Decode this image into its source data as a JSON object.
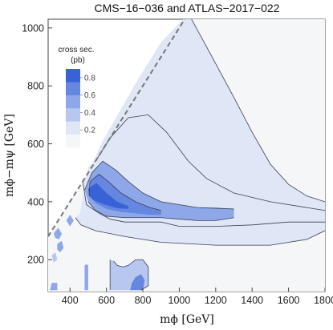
{
  "chart_data": {
    "type": "heatmap",
    "title": "CMS−16−036 and ATLAS−2017−022",
    "xlabel": "mϕ [GeV]",
    "ylabel": "mϕ−mψ [GeV]",
    "xlim": [
      280,
      1800
    ],
    "ylim": [
      90,
      1030
    ],
    "xticks": [
      "400",
      "600",
      "800",
      "1000",
      "1200",
      "1400",
      "1600",
      "1800"
    ],
    "xtick_values": [
      400,
      600,
      800,
      1000,
      1200,
      1400,
      1600,
      1800
    ],
    "yticks": [
      "200",
      "400",
      "600",
      "800",
      "1000"
    ],
    "ytick_values": [
      200,
      400,
      600,
      800,
      1000
    ],
    "boundary_line": {
      "style": "dashed",
      "from": [
        280,
        280
      ],
      "to": [
        1050,
        1050
      ]
    },
    "colorbar": {
      "title_line1": "cross sec.",
      "title_line2": "(pb)",
      "ticks": [
        "0.2",
        "0.4",
        "0.6",
        "0.8"
      ],
      "tick_values": [
        0.2,
        0.4,
        0.6,
        0.8
      ],
      "range": [
        0,
        0.9
      ],
      "colors": [
        "#f4f6f8",
        "#dfe6f6",
        "#b7c7f0",
        "#8ea7e9",
        "#6587e0",
        "#3a62d7"
      ]
    },
    "background_color": "#f4f6f8",
    "regions": [
      {
        "level": 0.1,
        "polygon": [
          [
            1050,
            1050
          ],
          [
            1180,
            900
          ],
          [
            1300,
            760
          ],
          [
            1400,
            640
          ],
          [
            1500,
            530
          ],
          [
            1600,
            460
          ],
          [
            1700,
            420
          ],
          [
            1800,
            400
          ],
          [
            1800,
            300
          ],
          [
            1700,
            270
          ],
          [
            1500,
            250
          ],
          [
            1200,
            250
          ],
          [
            900,
            260
          ],
          [
            700,
            280
          ],
          [
            540,
            300
          ],
          [
            460,
            320
          ],
          [
            430,
            345
          ],
          [
            455,
            360
          ],
          [
            500,
            520
          ],
          [
            520,
            530
          ],
          [
            580,
            610
          ],
          [
            680,
            720
          ],
          [
            780,
            830
          ],
          [
            900,
            950
          ]
        ]
      },
      {
        "level": 0.25,
        "polygon": [
          [
            540,
            540
          ],
          [
            620,
            620
          ],
          [
            720,
            690
          ],
          [
            830,
            700
          ],
          [
            930,
            640
          ],
          [
            1050,
            540
          ],
          [
            1150,
            480
          ],
          [
            1300,
            430
          ],
          [
            1500,
            400
          ],
          [
            1700,
            380
          ],
          [
            1800,
            370
          ],
          [
            1800,
            330
          ],
          [
            1600,
            330
          ],
          [
            1400,
            320
          ],
          [
            1200,
            315
          ],
          [
            1000,
            315
          ],
          [
            900,
            330
          ],
          [
            800,
            330
          ],
          [
            700,
            330
          ],
          [
            620,
            340
          ],
          [
            560,
            360
          ],
          [
            490,
            390
          ],
          [
            470,
            470
          ]
        ]
      },
      {
        "level": 0.45,
        "polygon": [
          [
            520,
            500
          ],
          [
            580,
            540
          ],
          [
            650,
            510
          ],
          [
            720,
            470
          ],
          [
            800,
            430
          ],
          [
            900,
            400
          ],
          [
            1000,
            390
          ],
          [
            1100,
            380
          ],
          [
            1200,
            380
          ],
          [
            1300,
            375
          ],
          [
            1300,
            345
          ],
          [
            1200,
            335
          ],
          [
            1100,
            335
          ],
          [
            1000,
            340
          ],
          [
            900,
            345
          ],
          [
            800,
            345
          ],
          [
            700,
            345
          ],
          [
            600,
            350
          ],
          [
            540,
            370
          ],
          [
            500,
            400
          ],
          [
            480,
            440
          ]
        ]
      },
      {
        "level": 0.65,
        "polygon": [
          [
            510,
            470
          ],
          [
            560,
            495
          ],
          [
            610,
            470
          ],
          [
            680,
            430
          ],
          [
            760,
            400
          ],
          [
            840,
            380
          ],
          [
            900,
            370
          ],
          [
            900,
            355
          ],
          [
            840,
            355
          ],
          [
            760,
            360
          ],
          [
            680,
            365
          ],
          [
            600,
            375
          ],
          [
            540,
            395
          ],
          [
            505,
            420
          ]
        ]
      },
      {
        "level": 0.85,
        "polygon": [
          [
            500,
            445
          ],
          [
            545,
            465
          ],
          [
            600,
            430
          ],
          [
            660,
            400
          ],
          [
            720,
            385
          ],
          [
            720,
            375
          ],
          [
            660,
            378
          ],
          [
            590,
            390
          ],
          [
            530,
            405
          ],
          [
            505,
            420
          ]
        ]
      },
      {
        "level": 0.35,
        "polygon": [
          [
            620,
            95
          ],
          [
            700,
            95
          ],
          [
            790,
            95
          ],
          [
            830,
            110
          ],
          [
            830,
            175
          ],
          [
            800,
            200
          ],
          [
            760,
            200
          ],
          [
            720,
            180
          ],
          [
            690,
            175
          ],
          [
            660,
            180
          ],
          [
            640,
            195
          ],
          [
            620,
            200
          ]
        ]
      },
      {
        "level": 0.7,
        "polygon": [
          [
            730,
            95
          ],
          [
            800,
            95
          ],
          [
            810,
            130
          ],
          [
            790,
            150
          ],
          [
            760,
            140
          ],
          [
            740,
            120
          ]
        ]
      },
      {
        "level": 0.5,
        "polygon": [
          [
            290,
            95
          ],
          [
            330,
            95
          ],
          [
            330,
            120
          ],
          [
            300,
            120
          ]
        ]
      },
      {
        "level": 0.45,
        "polygon": [
          [
            480,
            95
          ],
          [
            500,
            95
          ],
          [
            500,
            180
          ],
          [
            490,
            185
          ],
          [
            480,
            180
          ]
        ]
      },
      {
        "level": 0.5,
        "polygon": [
          [
            310,
            290
          ],
          [
            335,
            310
          ],
          [
            355,
            290
          ],
          [
            340,
            270
          ],
          [
            320,
            275
          ]
        ]
      },
      {
        "level": 0.5,
        "polygon": [
          [
            330,
            255
          ],
          [
            355,
            265
          ],
          [
            365,
            240
          ],
          [
            345,
            225
          ],
          [
            330,
            235
          ]
        ]
      },
      {
        "level": 0.45,
        "polygon": [
          [
            380,
            335
          ],
          [
            400,
            355
          ],
          [
            420,
            335
          ],
          [
            400,
            315
          ]
        ]
      },
      {
        "level": 0.4,
        "polygon": [
          [
            300,
            215
          ],
          [
            320,
            225
          ],
          [
            330,
            200
          ],
          [
            310,
            190
          ]
        ]
      }
    ],
    "contours": [
      [
        [
          1050,
          1050
        ],
        [
          1180,
          900
        ],
        [
          1300,
          760
        ],
        [
          1400,
          640
        ],
        [
          1500,
          530
        ],
        [
          1600,
          460
        ],
        [
          1700,
          420
        ],
        [
          1800,
          400
        ]
      ],
      [
        [
          1800,
          300
        ],
        [
          1700,
          270
        ],
        [
          1500,
          250
        ],
        [
          1200,
          250
        ],
        [
          900,
          260
        ],
        [
          700,
          280
        ],
        [
          540,
          300
        ],
        [
          460,
          320
        ],
        [
          430,
          345
        ]
      ],
      [
        [
          540,
          540
        ],
        [
          620,
          620
        ],
        [
          720,
          690
        ],
        [
          830,
          700
        ],
        [
          930,
          640
        ],
        [
          1050,
          540
        ],
        [
          1150,
          480
        ],
        [
          1300,
          430
        ],
        [
          1500,
          400
        ],
        [
          1700,
          380
        ],
        [
          1800,
          370
        ]
      ],
      [
        [
          470,
          470
        ],
        [
          490,
          390
        ],
        [
          560,
          360
        ],
        [
          620,
          340
        ],
        [
          700,
          330
        ],
        [
          800,
          330
        ],
        [
          900,
          330
        ],
        [
          1000,
          315
        ],
        [
          1200,
          315
        ],
        [
          1400,
          320
        ],
        [
          1600,
          330
        ],
        [
          1800,
          330
        ]
      ],
      [
        [
          480,
          440
        ],
        [
          520,
          500
        ],
        [
          580,
          540
        ],
        [
          650,
          510
        ],
        [
          720,
          470
        ],
        [
          800,
          430
        ],
        [
          900,
          400
        ],
        [
          1000,
          390
        ],
        [
          1100,
          380
        ],
        [
          1300,
          375
        ]
      ],
      [
        [
          500,
          400
        ],
        [
          540,
          370
        ],
        [
          600,
          350
        ],
        [
          700,
          345
        ],
        [
          800,
          345
        ],
        [
          900,
          345
        ],
        [
          1000,
          340
        ],
        [
          1100,
          335
        ],
        [
          1200,
          335
        ],
        [
          1300,
          345
        ]
      ],
      [
        [
          505,
          420
        ],
        [
          510,
          470
        ],
        [
          560,
          495
        ],
        [
          610,
          470
        ],
        [
          680,
          430
        ],
        [
          760,
          400
        ],
        [
          840,
          380
        ],
        [
          900,
          370
        ]
      ],
      [
        [
          620,
          200
        ],
        [
          620,
          95
        ]
      ],
      [
        [
          830,
          175
        ],
        [
          830,
          110
        ],
        [
          790,
          95
        ]
      ],
      [
        [
          640,
          195
        ],
        [
          660,
          180
        ],
        [
          690,
          175
        ],
        [
          720,
          180
        ],
        [
          760,
          200
        ],
        [
          800,
          200
        ],
        [
          830,
          175
        ]
      ]
    ]
  }
}
